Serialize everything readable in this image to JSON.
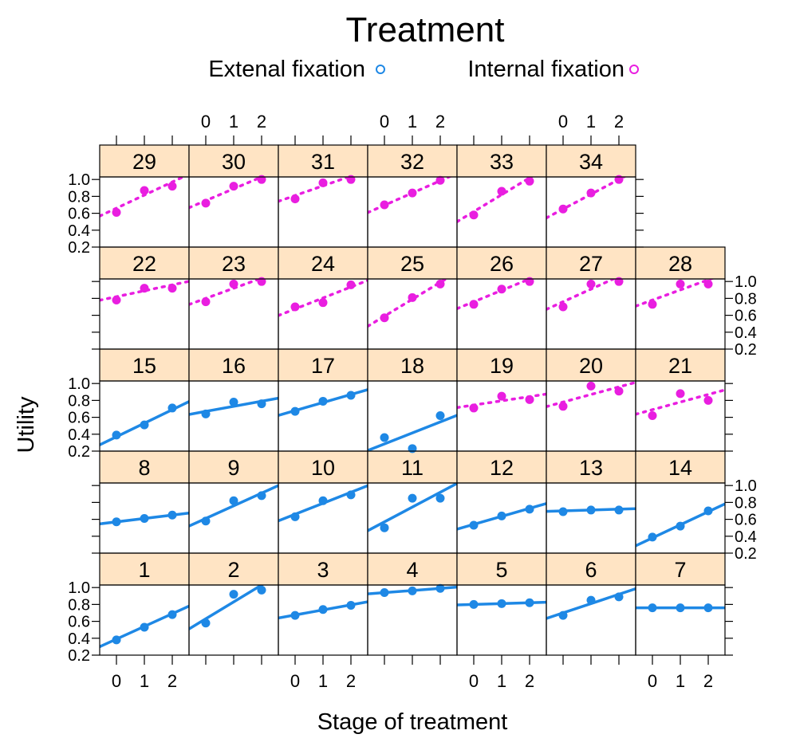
{
  "chart_data": {
    "type": "scatter",
    "title": "Treatment",
    "xlabel": "Stage of treatment",
    "ylabel": "Utility",
    "xlim": [
      -0.6,
      2.6
    ],
    "ylim": [
      0.2,
      1.03
    ],
    "x_ticks": [
      0,
      1,
      2
    ],
    "x_tick_labels": [
      "0",
      "1",
      "2"
    ],
    "y_ticks": [
      0.2,
      0.4,
      0.6,
      0.8,
      1.0
    ],
    "y_tick_labels": [
      "0.2",
      "0.4",
      "0.6",
      "0.8",
      "1.0"
    ],
    "grid": false,
    "legend_position": "top",
    "legend": [
      {
        "label": "Extenal fixation",
        "symbol": "o",
        "color": "#1E88E5",
        "line": "solid"
      },
      {
        "label": "Internal fixation",
        "symbol": "o",
        "color": "#E91EE0",
        "line": "dotted"
      }
    ],
    "strip_color": "#FFE4C4",
    "panels": [
      {
        "label": "1",
        "group": "external",
        "x": [
          0,
          1,
          2
        ],
        "y": [
          0.38,
          0.53,
          0.68
        ],
        "fit": [
          0.39,
          0.15
        ]
      },
      {
        "label": "2",
        "group": "external",
        "x": [
          0,
          1,
          2
        ],
        "y": [
          0.58,
          0.92,
          0.97
        ],
        "fit": [
          0.63,
          0.2
        ]
      },
      {
        "label": "3",
        "group": "external",
        "x": [
          0,
          1,
          2
        ],
        "y": [
          0.67,
          0.74,
          0.79
        ],
        "fit": [
          0.675,
          0.06
        ]
      },
      {
        "label": "4",
        "group": "external",
        "x": [
          0,
          1,
          2
        ],
        "y": [
          0.94,
          0.96,
          0.99
        ],
        "fit": [
          0.94,
          0.025
        ]
      },
      {
        "label": "5",
        "group": "external",
        "x": [
          0,
          1,
          2
        ],
        "y": [
          0.8,
          0.81,
          0.82
        ],
        "fit": [
          0.8,
          0.01
        ]
      },
      {
        "label": "6",
        "group": "external",
        "x": [
          0,
          1,
          2
        ],
        "y": [
          0.67,
          0.85,
          0.89
        ],
        "fit": [
          0.7,
          0.11
        ]
      },
      {
        "label": "7",
        "group": "external",
        "x": [
          0,
          1,
          2
        ],
        "y": [
          0.76,
          0.76,
          0.76
        ],
        "fit": [
          0.76,
          0.0
        ]
      },
      {
        "label": "8",
        "group": "external",
        "x": [
          0,
          1,
          2
        ],
        "y": [
          0.57,
          0.61,
          0.65
        ],
        "fit": [
          0.57,
          0.04
        ]
      },
      {
        "label": "9",
        "group": "external",
        "x": [
          0,
          1,
          2
        ],
        "y": [
          0.58,
          0.82,
          0.88
        ],
        "fit": [
          0.61,
          0.15
        ]
      },
      {
        "label": "10",
        "group": "external",
        "x": [
          0,
          1,
          2
        ],
        "y": [
          0.63,
          0.82,
          0.89
        ],
        "fit": [
          0.66,
          0.13
        ]
      },
      {
        "label": "11",
        "group": "external",
        "x": [
          0,
          1,
          2
        ],
        "y": [
          0.5,
          0.85,
          0.85
        ],
        "fit": [
          0.57,
          0.175
        ]
      },
      {
        "label": "12",
        "group": "external",
        "x": [
          0,
          1,
          2
        ],
        "y": [
          0.53,
          0.64,
          0.72
        ],
        "fit": [
          0.54,
          0.095
        ]
      },
      {
        "label": "13",
        "group": "external",
        "x": [
          0,
          1,
          2
        ],
        "y": [
          0.69,
          0.71,
          0.71
        ],
        "fit": [
          0.7,
          0.01
        ]
      },
      {
        "label": "14",
        "group": "external",
        "x": [
          0,
          1,
          2
        ],
        "y": [
          0.39,
          0.52,
          0.7
        ],
        "fit": [
          0.38,
          0.155
        ]
      },
      {
        "label": "15",
        "group": "external",
        "x": [
          0,
          1,
          2
        ],
        "y": [
          0.39,
          0.51,
          0.71
        ],
        "fit": [
          0.37,
          0.16
        ]
      },
      {
        "label": "16",
        "group": "external",
        "x": [
          0,
          1,
          2
        ],
        "y": [
          0.64,
          0.78,
          0.76
        ],
        "fit": [
          0.67,
          0.06
        ]
      },
      {
        "label": "17",
        "group": "external",
        "x": [
          0,
          1,
          2
        ],
        "y": [
          0.67,
          0.79,
          0.86
        ],
        "fit": [
          0.68,
          0.095
        ]
      },
      {
        "label": "18",
        "group": "external",
        "x": [
          0,
          1,
          2
        ],
        "y": [
          0.36,
          0.23,
          0.62
        ],
        "fit": [
          0.285,
          0.13
        ]
      },
      {
        "label": "19",
        "group": "internal",
        "x": [
          0,
          1,
          2
        ],
        "y": [
          0.71,
          0.85,
          0.81
        ],
        "fit": [
          0.745,
          0.05
        ]
      },
      {
        "label": "20",
        "group": "internal",
        "x": [
          0,
          1,
          2
        ],
        "y": [
          0.73,
          0.97,
          0.91
        ],
        "fit": [
          0.78,
          0.09
        ]
      },
      {
        "label": "21",
        "group": "internal",
        "x": [
          0,
          1,
          2
        ],
        "y": [
          0.62,
          0.88,
          0.8
        ],
        "fit": [
          0.69,
          0.09
        ]
      },
      {
        "label": "22",
        "group": "internal",
        "x": [
          0,
          1,
          2
        ],
        "y": [
          0.78,
          0.92,
          0.92
        ],
        "fit": [
          0.82,
          0.07
        ]
      },
      {
        "label": "23",
        "group": "internal",
        "x": [
          0,
          1,
          2
        ],
        "y": [
          0.76,
          0.97,
          1.0
        ],
        "fit": [
          0.8,
          0.12
        ]
      },
      {
        "label": "24",
        "group": "internal",
        "x": [
          0,
          1,
          2
        ],
        "y": [
          0.7,
          0.75,
          0.96
        ],
        "fit": [
          0.675,
          0.13
        ]
      },
      {
        "label": "25",
        "group": "internal",
        "x": [
          0,
          1,
          2
        ],
        "y": [
          0.57,
          0.81,
          0.97
        ],
        "fit": [
          0.59,
          0.2
        ]
      },
      {
        "label": "26",
        "group": "internal",
        "x": [
          0,
          1,
          2
        ],
        "y": [
          0.73,
          0.91,
          1.0
        ],
        "fit": [
          0.76,
          0.135
        ]
      },
      {
        "label": "27",
        "group": "internal",
        "x": [
          0,
          1,
          2
        ],
        "y": [
          0.7,
          0.97,
          1.0
        ],
        "fit": [
          0.76,
          0.15
        ]
      },
      {
        "label": "28",
        "group": "internal",
        "x": [
          0,
          1,
          2
        ],
        "y": [
          0.73,
          0.97,
          0.97
        ],
        "fit": [
          0.78,
          0.12
        ]
      },
      {
        "label": "29",
        "group": "internal",
        "x": [
          0,
          1,
          2
        ],
        "y": [
          0.61,
          0.87,
          0.92
        ],
        "fit": [
          0.66,
          0.155
        ]
      },
      {
        "label": "30",
        "group": "internal",
        "x": [
          0,
          1,
          2
        ],
        "y": [
          0.72,
          0.92,
          1.0
        ],
        "fit": [
          0.75,
          0.14
        ]
      },
      {
        "label": "31",
        "group": "internal",
        "x": [
          0,
          1,
          2
        ],
        "y": [
          0.77,
          0.96,
          1.0
        ],
        "fit": [
          0.81,
          0.115
        ]
      },
      {
        "label": "32",
        "group": "internal",
        "x": [
          0,
          1,
          2
        ],
        "y": [
          0.7,
          0.84,
          0.99
        ],
        "fit": [
          0.695,
          0.145
        ]
      },
      {
        "label": "33",
        "group": "internal",
        "x": [
          0,
          1,
          2
        ],
        "y": [
          0.58,
          0.86,
          0.98
        ],
        "fit": [
          0.62,
          0.2
        ]
      },
      {
        "label": "34",
        "group": "internal",
        "x": [
          0,
          1,
          2
        ],
        "y": [
          0.65,
          0.84,
          1.0
        ],
        "fit": [
          0.65,
          0.175
        ]
      }
    ]
  }
}
